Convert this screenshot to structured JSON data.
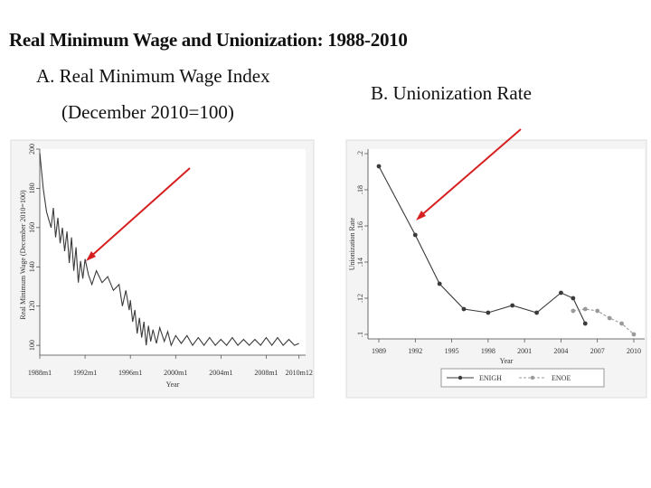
{
  "heading": {
    "title": "Real Minimum Wage and Unionization: 1988-2010",
    "panel_a_line1": "A.  Real Minimum Wage Index",
    "panel_a_line2": "(December 2010=100)",
    "panel_b": "B.  Unionization Rate"
  },
  "colors": {
    "arrow": "#d62020",
    "line": "#3a3a3a",
    "enoe": "#9a9a9a",
    "panel_bg": "#f4f4f4"
  },
  "chart_data": [
    {
      "type": "line",
      "title": "Real Minimum Wage Index",
      "xlabel": "Year",
      "ylabel": "Real Minimum Wage (December 2010=100)",
      "x_ticks": [
        "1988m1",
        "1992m1",
        "1996m1",
        "2000m1",
        "2004m1",
        "2008m1",
        "2010m12"
      ],
      "y_ticks": [
        100,
        120,
        140,
        160,
        180,
        200
      ],
      "ylim": [
        95,
        200
      ],
      "xlim": [
        1988.0,
        2011.0
      ],
      "series": [
        {
          "name": "Real minimum wage index",
          "x": [
            1988.0,
            1988.3,
            1988.6,
            1989.0,
            1989.2,
            1989.4,
            1989.6,
            1989.8,
            1990.0,
            1990.2,
            1990.4,
            1990.6,
            1990.8,
            1991.0,
            1991.2,
            1991.4,
            1991.6,
            1991.8,
            1992.0,
            1992.3,
            1992.6,
            1993.0,
            1993.5,
            1994.0,
            1994.5,
            1995.0,
            1995.3,
            1995.6,
            1995.9,
            1996.0,
            1996.2,
            1996.4,
            1996.6,
            1996.8,
            1997.0,
            1997.2,
            1997.4,
            1997.6,
            1997.8,
            1998.0,
            1998.3,
            1998.6,
            1999.0,
            1999.3,
            1999.6,
            2000.0,
            2000.5,
            2001.0,
            2001.5,
            2002.0,
            2002.5,
            2003.0,
            2003.5,
            2004.0,
            2004.5,
            2005.0,
            2005.5,
            2006.0,
            2006.5,
            2007.0,
            2007.5,
            2008.0,
            2008.5,
            2009.0,
            2009.5,
            2010.0,
            2010.5,
            2010.9
          ],
          "values": [
            198,
            180,
            168,
            160,
            170,
            155,
            165,
            152,
            160,
            148,
            158,
            142,
            155,
            138,
            150,
            132,
            143,
            134,
            144,
            136,
            131,
            138,
            132,
            135,
            128,
            131,
            120,
            128,
            118,
            123,
            112,
            118,
            106,
            114,
            104,
            112,
            100,
            110,
            102,
            108,
            101,
            109,
            102,
            107,
            100,
            105,
            101,
            105,
            100,
            104,
            100,
            104,
            100,
            103,
            100,
            104,
            100,
            103,
            100,
            103,
            100,
            104,
            100,
            104,
            100,
            103,
            100,
            101
          ]
        }
      ]
    },
    {
      "type": "line",
      "title": "Unionization Rate",
      "xlabel": "Year",
      "ylabel": "Unionization Rate",
      "x_ticks": [
        1989,
        1992,
        1995,
        1998,
        2001,
        2004,
        2007,
        2010
      ],
      "y_ticks": [
        ".1",
        ".12",
        ".14",
        ".16",
        ".18",
        ".2"
      ],
      "ylim": [
        0.1,
        0.2
      ],
      "xlim": [
        1989,
        2010
      ],
      "legend": "bottom",
      "series": [
        {
          "name": "ENIGH",
          "x": [
            1989,
            1992,
            1994,
            1996,
            1998,
            2000,
            2002,
            2004,
            2005,
            2006
          ],
          "values": [
            0.193,
            0.155,
            0.128,
            0.114,
            0.112,
            0.116,
            0.112,
            0.123,
            0.12,
            0.106
          ]
        },
        {
          "name": "ENOE",
          "x": [
            2005,
            2006,
            2007,
            2008,
            2009,
            2010
          ],
          "values": [
            0.113,
            0.114,
            0.113,
            0.109,
            0.106,
            0.1
          ]
        }
      ]
    }
  ]
}
